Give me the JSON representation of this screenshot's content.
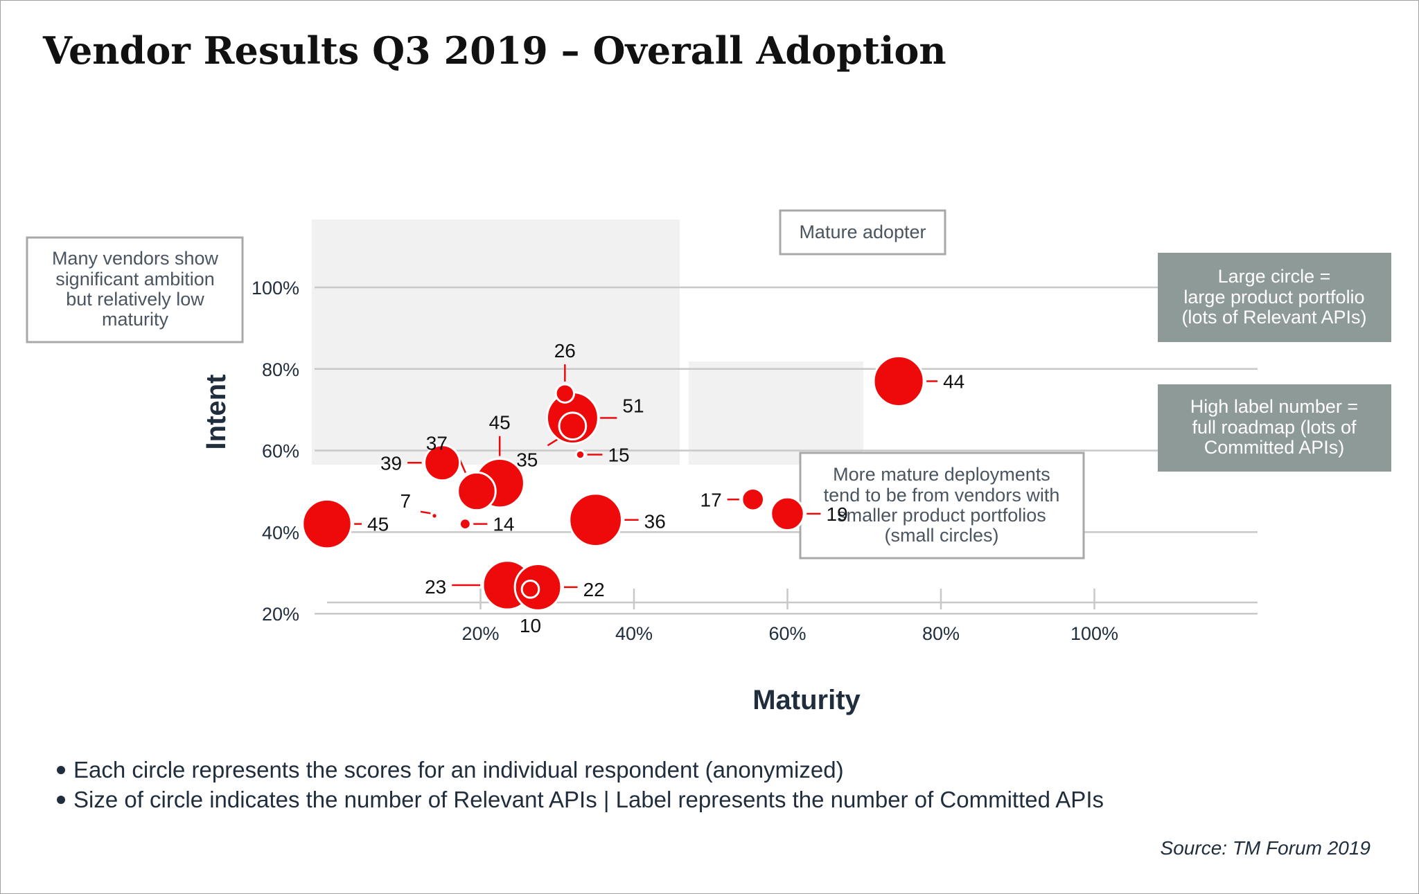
{
  "chart_data": {
    "type": "scatter",
    "title": "Vendor Results Q3 2019 – Overall Adoption",
    "xlabel": "Maturity",
    "ylabel": "Intent",
    "x_ticks": [
      "20%",
      "40%",
      "60%",
      "80%",
      "100%"
    ],
    "y_ticks": [
      "20%",
      "40%",
      "60%",
      "80%",
      "100%"
    ],
    "xlim": [
      0,
      120
    ],
    "ylim": [
      0,
      100
    ],
    "grid": "horizontal",
    "points": [
      {
        "x": 0,
        "y": 42,
        "size": 40,
        "label": "45"
      },
      {
        "x": 15,
        "y": 57,
        "size": 29,
        "label": "39"
      },
      {
        "x": 14,
        "y": 44,
        "size": 3,
        "label": "7"
      },
      {
        "x": 18,
        "y": 42,
        "size": 9,
        "label": "14"
      },
      {
        "x": 19.5,
        "y": 50,
        "size": 31,
        "label": "37"
      },
      {
        "x": 22.5,
        "y": 52,
        "size": 40,
        "label": "45"
      },
      {
        "x": 31,
        "y": 74,
        "size": 15,
        "label": "26"
      },
      {
        "x": 32,
        "y": 68,
        "size": 42,
        "label": "51"
      },
      {
        "x": 32,
        "y": 66,
        "size": 22,
        "label": "35"
      },
      {
        "x": 33,
        "y": 59,
        "size": 7,
        "label": "15"
      },
      {
        "x": 35,
        "y": 43,
        "size": 43,
        "label": "36"
      },
      {
        "x": 23.5,
        "y": 27,
        "size": 40,
        "label": "23"
      },
      {
        "x": 27.5,
        "y": 26.5,
        "size": 38,
        "label": "22"
      },
      {
        "x": 26.5,
        "y": 26,
        "size": 14,
        "label": "10"
      },
      {
        "x": 55.5,
        "y": 48,
        "size": 18,
        "label": "17"
      },
      {
        "x": 60,
        "y": 44.5,
        "size": 27,
        "label": "19"
      },
      {
        "x": 74.5,
        "y": 77,
        "size": 41,
        "label": "44"
      }
    ]
  },
  "annotations": {
    "left_note": [
      "Many vendors show",
      "significant ambition",
      "but relatively low",
      "maturity"
    ],
    "mature_label": "Mature adopter",
    "deployments_note": [
      "More mature deployments",
      "tend to be from vendors with",
      "smaller product portfolios",
      "(small circles)"
    ],
    "legend_size": [
      "Large circle =",
      "large product portfolio",
      "(lots of Relevant APIs)"
    ],
    "legend_label": [
      "High label number =",
      "full roadmap (lots of",
      "Committed APIs)"
    ]
  },
  "footnotes": [
    "Each circle represents the scores for an individual respondent (anonymized)",
    "Size of circle indicates the number of Relevant APIs | Label represents the number of Committed APIs"
  ],
  "source": "Source: TM Forum 2019",
  "colors": {
    "circle": "#ee0a0a",
    "grid": "#c8c8c8",
    "region": "#f1f1f1",
    "legend_box": "#8e9a98",
    "text": "#1f2d3d"
  }
}
